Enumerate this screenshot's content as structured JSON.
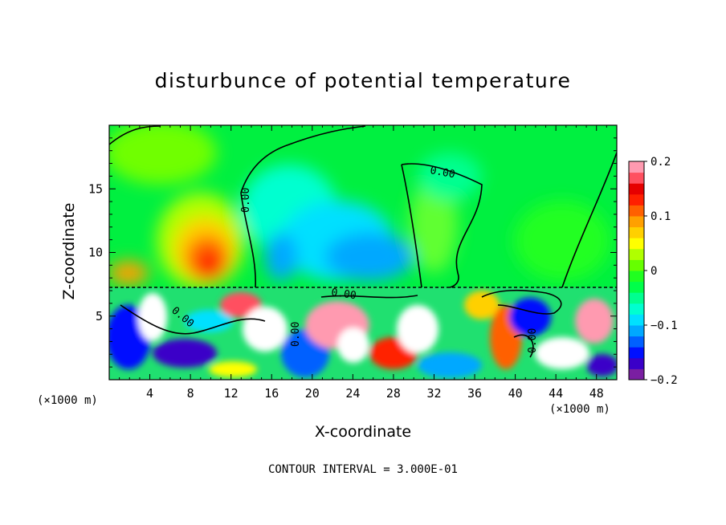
{
  "chart_data": {
    "type": "heatmap",
    "title": "disturbunce of potential temperature",
    "xlabel": "X-coordinate",
    "ylabel": "Z-coordinate",
    "x_unit": "(×1000 m)",
    "x_unit_right": "(×1000 m)",
    "xlim": [
      0,
      50
    ],
    "ylim": [
      0,
      20
    ],
    "x_ticks": [
      4,
      8,
      12,
      16,
      20,
      24,
      28,
      32,
      36,
      40,
      44,
      48
    ],
    "y_ticks": [
      5,
      10,
      15
    ],
    "colorbar": {
      "min": -0.2,
      "max": 0.2,
      "tick_values": [
        0.2,
        0.1,
        0,
        -0.1,
        -0.2
      ],
      "tick_labels": [
        "0.2",
        "0.1",
        "0",
        "−0.1",
        "−0.2"
      ],
      "colors": [
        "#7a1fa2",
        "#3a00c8",
        "#0010ff",
        "#0060ff",
        "#00a8ff",
        "#00e0ff",
        "#00ffd0",
        "#00ff90",
        "#00ff4a",
        "#20ff20",
        "#66ff00",
        "#b0ff00",
        "#ffff00",
        "#ffd000",
        "#ffa000",
        "#ff6000",
        "#ff2000",
        "#e60000",
        "#ff5060",
        "#ff9ab0"
      ]
    },
    "contour_label": "0.00",
    "contour_interval": "CONTOUR INTERVAL = 3.000E-01"
  }
}
